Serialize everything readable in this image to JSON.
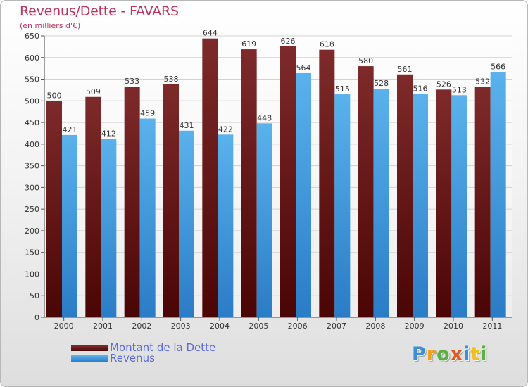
{
  "chart_data": {
    "type": "bar",
    "title": "Revenus/Dette - FAVARS",
    "subtitle": "(en milliers d'€)",
    "categories": [
      "2000",
      "2001",
      "2002",
      "2003",
      "2004",
      "2005",
      "2006",
      "2007",
      "2008",
      "2009",
      "2010",
      "2011"
    ],
    "series": [
      {
        "name": "Montant de la Dette",
        "color": "#6d1d1d",
        "values": [
          500,
          509,
          533,
          538,
          644,
          619,
          626,
          618,
          580,
          561,
          526,
          532
        ]
      },
      {
        "name": "Revenus",
        "color": "#3e9ee0",
        "values": [
          421,
          412,
          459,
          431,
          422,
          448,
          564,
          515,
          528,
          516,
          513,
          566
        ]
      }
    ],
    "yticks": [
      0,
      50,
      100,
      150,
      200,
      250,
      300,
      350,
      400,
      450,
      500,
      550,
      600,
      650
    ],
    "ylim": [
      0,
      650
    ],
    "grid": true,
    "legend_position": "bottom-left"
  },
  "branding": {
    "logo_letters": [
      {
        "char": "P",
        "color": "#3a8fd8"
      },
      {
        "char": "r",
        "color": "#f0a020"
      },
      {
        "char": "o",
        "color": "#5ab040"
      },
      {
        "char": "x",
        "color": "#e05a20"
      },
      {
        "char": "i",
        "color": "#3a8fd8"
      },
      {
        "char": "t",
        "color": "#f0c020"
      },
      {
        "char": "i",
        "color": "#5ab040"
      }
    ]
  }
}
